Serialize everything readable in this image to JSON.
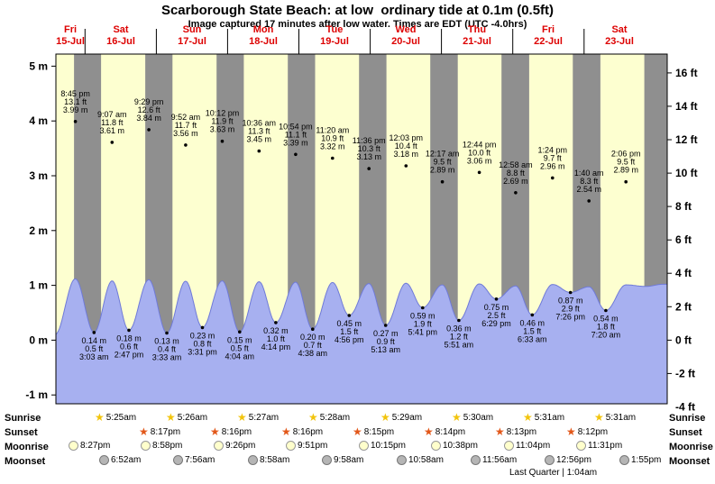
{
  "header": {
    "title": "Scarborough State Beach: at low  ordinary tide at 0.1m (0.5ft)",
    "subtitle": "Image captured 17 minutes after low water. Times are EDT (UTC -4.0hrs)"
  },
  "chart_data": {
    "type": "area",
    "title": "Scarborough State Beach tide heights",
    "ylabel_left": "meters",
    "ylabel_right": "feet",
    "y_left_ticks": [
      "5 m",
      "4 m",
      "3 m",
      "2 m",
      "1 m",
      "0 m",
      "-1 m"
    ],
    "y_left_values": [
      5,
      4,
      3,
      2,
      1,
      0,
      -1
    ],
    "y_right_ticks": [
      "16 ft",
      "14 ft",
      "12 ft",
      "10 ft",
      "8 ft",
      "6 ft",
      "4 ft",
      "2 ft",
      "0 ft",
      "-2 ft",
      "-4 ft"
    ],
    "y_right_values_ft": [
      16,
      14,
      12,
      10,
      8,
      6,
      4,
      2,
      0,
      -2,
      -4
    ],
    "days": [
      {
        "dow": "Fri",
        "date": "15-Jul"
      },
      {
        "dow": "Sat",
        "date": "16-Jul"
      },
      {
        "dow": "Sun",
        "date": "17-Jul"
      },
      {
        "dow": "Mon",
        "date": "18-Jul"
      },
      {
        "dow": "Tue",
        "date": "19-Jul"
      },
      {
        "dow": "Wed",
        "date": "20-Jul"
      },
      {
        "dow": "Thu",
        "date": "21-Jul"
      },
      {
        "dow": "Fri",
        "date": "22-Jul"
      },
      {
        "dow": "Sat",
        "date": "23-Jul"
      }
    ],
    "high_tides": [
      {
        "day": 0,
        "time": "8:45 pm",
        "ft": "13.1 ft",
        "m": "3.99 m",
        "height_m": 3.99
      },
      {
        "day": 1,
        "time": "9:07 am",
        "ft": "11.8 ft",
        "m": "3.61 m",
        "height_m": 3.61
      },
      {
        "day": 1,
        "time": "9:29 pm",
        "ft": "12.6 ft",
        "m": "3.84 m",
        "height_m": 3.84
      },
      {
        "day": 2,
        "time": "9:52 am",
        "ft": "11.7 ft",
        "m": "3.56 m",
        "height_m": 3.56
      },
      {
        "day": 2,
        "time": "10:12 pm",
        "ft": "11.9 ft",
        "m": "3.63 m",
        "height_m": 3.63
      },
      {
        "day": 3,
        "time": "10:36 am",
        "ft": "11.3 ft",
        "m": "3.45 m",
        "height_m": 3.45
      },
      {
        "day": 3,
        "time": "10:54 pm",
        "ft": "11.1 ft",
        "m": "3.39 m",
        "height_m": 3.39
      },
      {
        "day": 4,
        "time": "11:20 am",
        "ft": "10.9 ft",
        "m": "3.32 m",
        "height_m": 3.32
      },
      {
        "day": 4,
        "time": "11:36 pm",
        "ft": "10.3 ft",
        "m": "3.13 m",
        "height_m": 3.13
      },
      {
        "day": 5,
        "time": "12:03 pm",
        "ft": "10.4 ft",
        "m": "3.18 m",
        "height_m": 3.18
      },
      {
        "day": 6,
        "time": "12:17 am",
        "ft": "9.5 ft",
        "m": "2.89 m",
        "height_m": 2.89
      },
      {
        "day": 6,
        "time": "12:44 pm",
        "ft": "10.0 ft",
        "m": "3.06 m",
        "height_m": 3.06
      },
      {
        "day": 7,
        "time": "12:58 am",
        "ft": "8.8 ft",
        "m": "2.69 m",
        "height_m": 2.69
      },
      {
        "day": 7,
        "time": "1:24 pm",
        "ft": "9.7 ft",
        "m": "2.96 m",
        "height_m": 2.96
      },
      {
        "day": 8,
        "time": "1:40 am",
        "ft": "8.3 ft",
        "m": "2.54 m",
        "height_m": 2.54
      },
      {
        "day": 8,
        "time": "2:06 pm",
        "ft": "9.5 ft",
        "m": "2.89 m",
        "height_m": 2.89
      }
    ],
    "low_tides": [
      {
        "day": 1,
        "time": "3:03 am",
        "m": "0.14 m",
        "ft": "0.5 ft",
        "height_m": 0.14
      },
      {
        "day": 1,
        "time": "2:47 pm",
        "m": "0.18 m",
        "ft": "0.6 ft",
        "height_m": 0.18
      },
      {
        "day": 2,
        "time": "3:33 am",
        "m": "0.13 m",
        "ft": "0.4 ft",
        "height_m": 0.13
      },
      {
        "day": 2,
        "time": "3:31 pm",
        "m": "0.23 m",
        "ft": "0.8 ft",
        "height_m": 0.23
      },
      {
        "day": 3,
        "time": "4:04 am",
        "m": "0.15 m",
        "ft": "0.5 ft",
        "height_m": 0.15
      },
      {
        "day": 3,
        "time": "4:14 pm",
        "m": "0.32 m",
        "ft": "1.0 ft",
        "height_m": 0.32
      },
      {
        "day": 4,
        "time": "4:38 am",
        "m": "0.20 m",
        "ft": "0.7 ft",
        "height_m": 0.2
      },
      {
        "day": 4,
        "time": "4:56 pm",
        "m": "0.45 m",
        "ft": "1.5 ft",
        "height_m": 0.45
      },
      {
        "day": 5,
        "time": "5:13 am",
        "m": "0.27 m",
        "ft": "0.9 ft",
        "height_m": 0.27
      },
      {
        "day": 5,
        "time": "5:41 pm",
        "m": "0.59 m",
        "ft": "1.9 ft",
        "height_m": 0.59
      },
      {
        "day": 6,
        "time": "5:51 am",
        "m": "0.36 m",
        "ft": "1.2 ft",
        "height_m": 0.36
      },
      {
        "day": 6,
        "time": "6:29 pm",
        "m": "0.75 m",
        "ft": "2.5 ft",
        "height_m": 0.75
      },
      {
        "day": 7,
        "time": "6:33 am",
        "m": "0.46 m",
        "ft": "1.5 ft",
        "height_m": 0.46
      },
      {
        "day": 7,
        "time": "7:26 pm",
        "m": "0.87 m",
        "ft": "2.9 ft",
        "height_m": 0.87
      },
      {
        "day": 8,
        "time": "7:20 am",
        "m": "0.54 m",
        "ft": "1.8 ft",
        "height_m": 0.54
      }
    ],
    "colors": {
      "night_band": "#8f8f8f",
      "day_band": "#fdffd0",
      "wave_fill": "#a7b0f0",
      "wave_stroke": "#6f7ad8",
      "day_label": "#dd0000",
      "sunrise_star": "#f2c40c",
      "sunset_star": "#e2581a",
      "moonrise_circle": "#ffffcc",
      "moonset_circle": "#b5b5b5"
    }
  },
  "astro": {
    "rows": [
      {
        "label": "Sunrise",
        "icon": "sunrise-star-icon",
        "entries": [
          {
            "day": 1,
            "time": "5:25am"
          },
          {
            "day": 2,
            "time": "5:26am"
          },
          {
            "day": 3,
            "time": "5:27am"
          },
          {
            "day": 4,
            "time": "5:28am"
          },
          {
            "day": 5,
            "time": "5:29am"
          },
          {
            "day": 6,
            "time": "5:30am"
          },
          {
            "day": 7,
            "time": "5:31am"
          },
          {
            "day": 8,
            "time": "5:31am"
          }
        ]
      },
      {
        "label": "Sunset",
        "icon": "sunset-star-icon",
        "entries": [
          {
            "day": 1,
            "time": "8:17pm"
          },
          {
            "day": 2,
            "time": "8:16pm"
          },
          {
            "day": 3,
            "time": "8:16pm"
          },
          {
            "day": 4,
            "time": "8:15pm"
          },
          {
            "day": 5,
            "time": "8:14pm"
          },
          {
            "day": 6,
            "time": "8:13pm"
          },
          {
            "day": 7,
            "time": "8:12pm"
          }
        ]
      },
      {
        "label": "Moonrise",
        "icon": "moonrise-circle-icon",
        "entries": [
          {
            "day": 0,
            "time": "8:27pm"
          },
          {
            "day": 1,
            "time": "8:58pm"
          },
          {
            "day": 2,
            "time": "9:26pm"
          },
          {
            "day": 3,
            "time": "9:51pm"
          },
          {
            "day": 4,
            "time": "10:15pm"
          },
          {
            "day": 5,
            "time": "10:38pm"
          },
          {
            "day": 6,
            "time": "11:04pm"
          },
          {
            "day": 7,
            "time": "11:31pm"
          }
        ]
      },
      {
        "label": "Moonset",
        "icon": "moonset-circle-icon",
        "entries": [
          {
            "day": 1,
            "time": "6:52am"
          },
          {
            "day": 2,
            "time": "7:56am"
          },
          {
            "day": 3,
            "time": "8:58am"
          },
          {
            "day": 4,
            "time": "9:58am"
          },
          {
            "day": 5,
            "time": "10:58am"
          },
          {
            "day": 6,
            "time": "11:56am"
          },
          {
            "day": 7,
            "time": "12:56pm"
          },
          {
            "day": 8,
            "time": "1:55pm"
          }
        ]
      }
    ],
    "moon_phase": "Last Quarter | 1:04am"
  }
}
